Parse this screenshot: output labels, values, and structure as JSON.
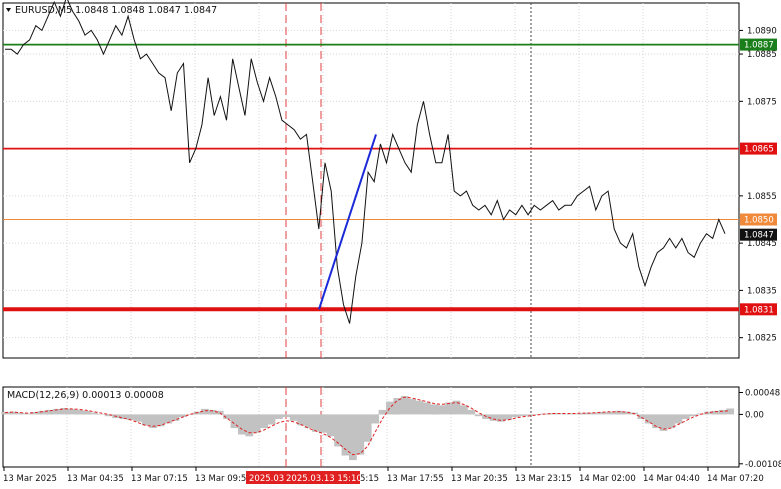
{
  "chart_data": {
    "type": "line",
    "symbol_header": "EURUSD,M5  1.0848 1.0848 1.0847 1.0847",
    "price_ticks": [
      "1.0890",
      "1.0885",
      "1.0875",
      "1.0855",
      "1.0845",
      "1.0835",
      "1.0825"
    ],
    "price_tick_values": [
      1.089,
      1.0885,
      1.0875,
      1.0855,
      1.0845,
      1.0835,
      1.0825
    ],
    "ylim": [
      1.08207,
      1.08958
    ],
    "price_series": [
      1.0886,
      1.0886,
      1.0885,
      1.0887,
      1.0888,
      1.0891,
      1.089,
      1.0893,
      1.0896,
      1.0893,
      1.0897,
      1.0894,
      1.0892,
      1.0889,
      1.089,
      1.0888,
      1.0885,
      1.0888,
      1.0891,
      1.0889,
      1.0893,
      1.0888,
      1.0884,
      1.0885,
      1.0883,
      1.0881,
      1.088,
      1.0873,
      1.0881,
      1.0883,
      1.0862,
      1.0865,
      1.087,
      1.088,
      1.0872,
      1.0876,
      1.0871,
      1.0884,
      1.0878,
      1.0872,
      1.0884,
      1.0879,
      1.0875,
      1.088,
      1.0876,
      1.0871,
      1.087,
      1.0869,
      1.0867,
      1.0868,
      1.0858,
      1.0848,
      1.0862,
      1.0856,
      1.084,
      1.0832,
      1.0828,
      1.0838,
      1.0845,
      1.086,
      1.0858,
      1.0866,
      1.0862,
      1.0868,
      1.0865,
      1.0862,
      1.086,
      1.087,
      1.0875,
      1.0868,
      1.0862,
      1.0862,
      1.0868,
      1.0856,
      1.0855,
      1.0856,
      1.0853,
      1.0852,
      1.0853,
      1.0851,
      1.0854,
      1.085,
      1.0852,
      1.0851,
      1.0853,
      1.0851,
      1.0853,
      1.0852,
      1.0853,
      1.0854,
      1.0852,
      1.0853,
      1.0853,
      1.0855,
      1.0856,
      1.0857,
      1.0852,
      1.0855,
      1.0856,
      1.0848,
      1.0845,
      1.0844,
      1.0847,
      1.084,
      1.0836,
      1.084,
      1.0843,
      1.0844,
      1.0846,
      1.0844,
      1.0846,
      1.0843,
      1.0842,
      1.0845,
      1.0847,
      1.0846,
      1.085,
      1.0847
    ],
    "levels": [
      {
        "value": 1.0887,
        "label": "1.0887",
        "color": "#1a7f1a"
      },
      {
        "value": 1.0865,
        "label": "1.0865",
        "color": "#e01010"
      },
      {
        "value": 1.085,
        "label": "1.0850",
        "color": "#f08a3a"
      },
      {
        "value": 1.0831,
        "label": "1.0831",
        "color": "#e01010"
      }
    ],
    "current_price": {
      "value": 1.0847,
      "label": "1.0847"
    },
    "trend_line": {
      "from": [
        1.0831
      ],
      "to": [
        1.0868
      ],
      "color": "#1b2ad8"
    },
    "x_labels": [
      "13 Mar 2025",
      "13 Mar 04:35",
      "13 Mar 07:15",
      "13 Mar 09:5",
      "13 Mar 17:55",
      "13 Mar 20:35",
      "13 Mar 23:15",
      "14 Mar 02:00",
      "14 Mar 04:40",
      "14 Mar 07:20"
    ],
    "x_label_partial": "5:15",
    "x_highlight_labels": [
      "2025.03",
      "2025.03.13 15:10"
    ],
    "macd": {
      "header": "MACD(12,26,9) 0.00013 0.00008",
      "ticks": [
        "0.00048",
        "0.00",
        "-0.00108"
      ],
      "tick_values": [
        0.00048,
        0.0,
        -0.00108
      ],
      "ylim": [
        -0.00115,
        0.0006
      ],
      "histogram": [
        5e-05,
        6e-05,
        4e-05,
        2e-05,
        5e-05,
        8e-05,
        0.0001,
        0.00012,
        0.00014,
        0.00012,
        0.0001,
        8e-05,
        4e-05,
        0.0,
        -4e-05,
        -8e-05,
        -0.0001,
        -0.00012,
        -0.00016,
        -0.00024,
        -0.0003,
        -0.00026,
        -0.0002,
        -0.00014,
        -6e-05,
        0.0,
        6e-05,
        0.00012,
        0.0001,
        8e-05,
        -0.0001,
        -0.0003,
        -0.00044,
        -0.00048,
        -0.0004,
        -0.0003,
        -0.00022,
        -0.0001,
        -6e-05,
        -0.00014,
        -0.00024,
        -0.0003,
        -0.00038,
        -0.0004,
        -0.00048,
        -0.0007,
        -0.0009,
        -0.001,
        -0.00088,
        -0.0006,
        -0.0002,
        0.0001,
        0.00028,
        0.00036,
        0.0004,
        0.00034,
        0.0003,
        0.00026,
        0.00022,
        0.0002,
        0.00026,
        0.0003,
        0.0002,
        0.0001,
        -4e-05,
        -0.0001,
        -0.00014,
        -0.00016,
        -0.00012,
        -6e-05,
        -4e-05,
        -2e-05,
        0.0,
        2e-05,
        3e-05,
        2e-05,
        1e-05,
        2e-05,
        3e-05,
        4e-05,
        4e-05,
        5e-05,
        6e-05,
        8e-05,
        6e-05,
        4e-05,
        -0.0001,
        -0.0002,
        -0.0003,
        -0.00036,
        -0.0003,
        -0.0002,
        -0.0001,
        -4e-05,
        2e-05,
        6e-05,
        8e-05,
        0.0001,
        0.00013
      ],
      "signal": [
        4e-05,
        5e-05,
        4e-05,
        3e-05,
        4e-05,
        6e-05,
        8e-05,
        0.0001,
        0.00012,
        0.00012,
        0.00011,
        9e-05,
        6e-05,
        3e-05,
        0.0,
        -4e-05,
        -8e-05,
        -0.00012,
        -0.00018,
        -0.00024,
        -0.00026,
        -0.00024,
        -0.00018,
        -0.00012,
        -6e-05,
        0.0,
        4e-05,
        8e-05,
        8e-05,
        4e-05,
        -8e-05,
        -0.0002,
        -0.00032,
        -0.0004,
        -0.0004,
        -0.00034,
        -0.00026,
        -0.00018,
        -0.00014,
        -0.00016,
        -0.00022,
        -0.0003,
        -0.00036,
        -0.00042,
        -0.0005,
        -0.00062,
        -0.00076,
        -0.00088,
        -0.00086,
        -0.0007,
        -0.0004,
        -0.0001,
        0.00014,
        0.0003,
        0.00038,
        0.00036,
        0.00032,
        0.00028,
        0.00024,
        0.00022,
        0.00024,
        0.00026,
        0.00022,
        0.00014,
        4e-05,
        -4e-05,
        -0.0001,
        -0.00013,
        -0.00012,
        -8e-05,
        -5e-05,
        -3e-05,
        -1e-05,
        1e-05,
        2e-05,
        2e-05,
        2e-05,
        2e-05,
        3e-05,
        3e-05,
        4e-05,
        5e-05,
        6e-05,
        6e-05,
        5e-05,
        2e-05,
        -6e-05,
        -0.00016,
        -0.00026,
        -0.00032,
        -0.0003,
        -0.00022,
        -0.00014,
        -6e-05,
        0.0,
        4e-05,
        6e-05,
        7e-05,
        8e-05
      ]
    }
  },
  "colors": {
    "price_line": "#111111",
    "grid": "#d6d6d6",
    "vline_red": "#e04040",
    "vline_dark": "#444444",
    "histogram": "#c2c2c2",
    "signal": "#e02020",
    "highlight_bg": "#e02020",
    "label_bg_dark": "#111111"
  },
  "icons": {
    "header_marker": "triangle-down-icon"
  }
}
